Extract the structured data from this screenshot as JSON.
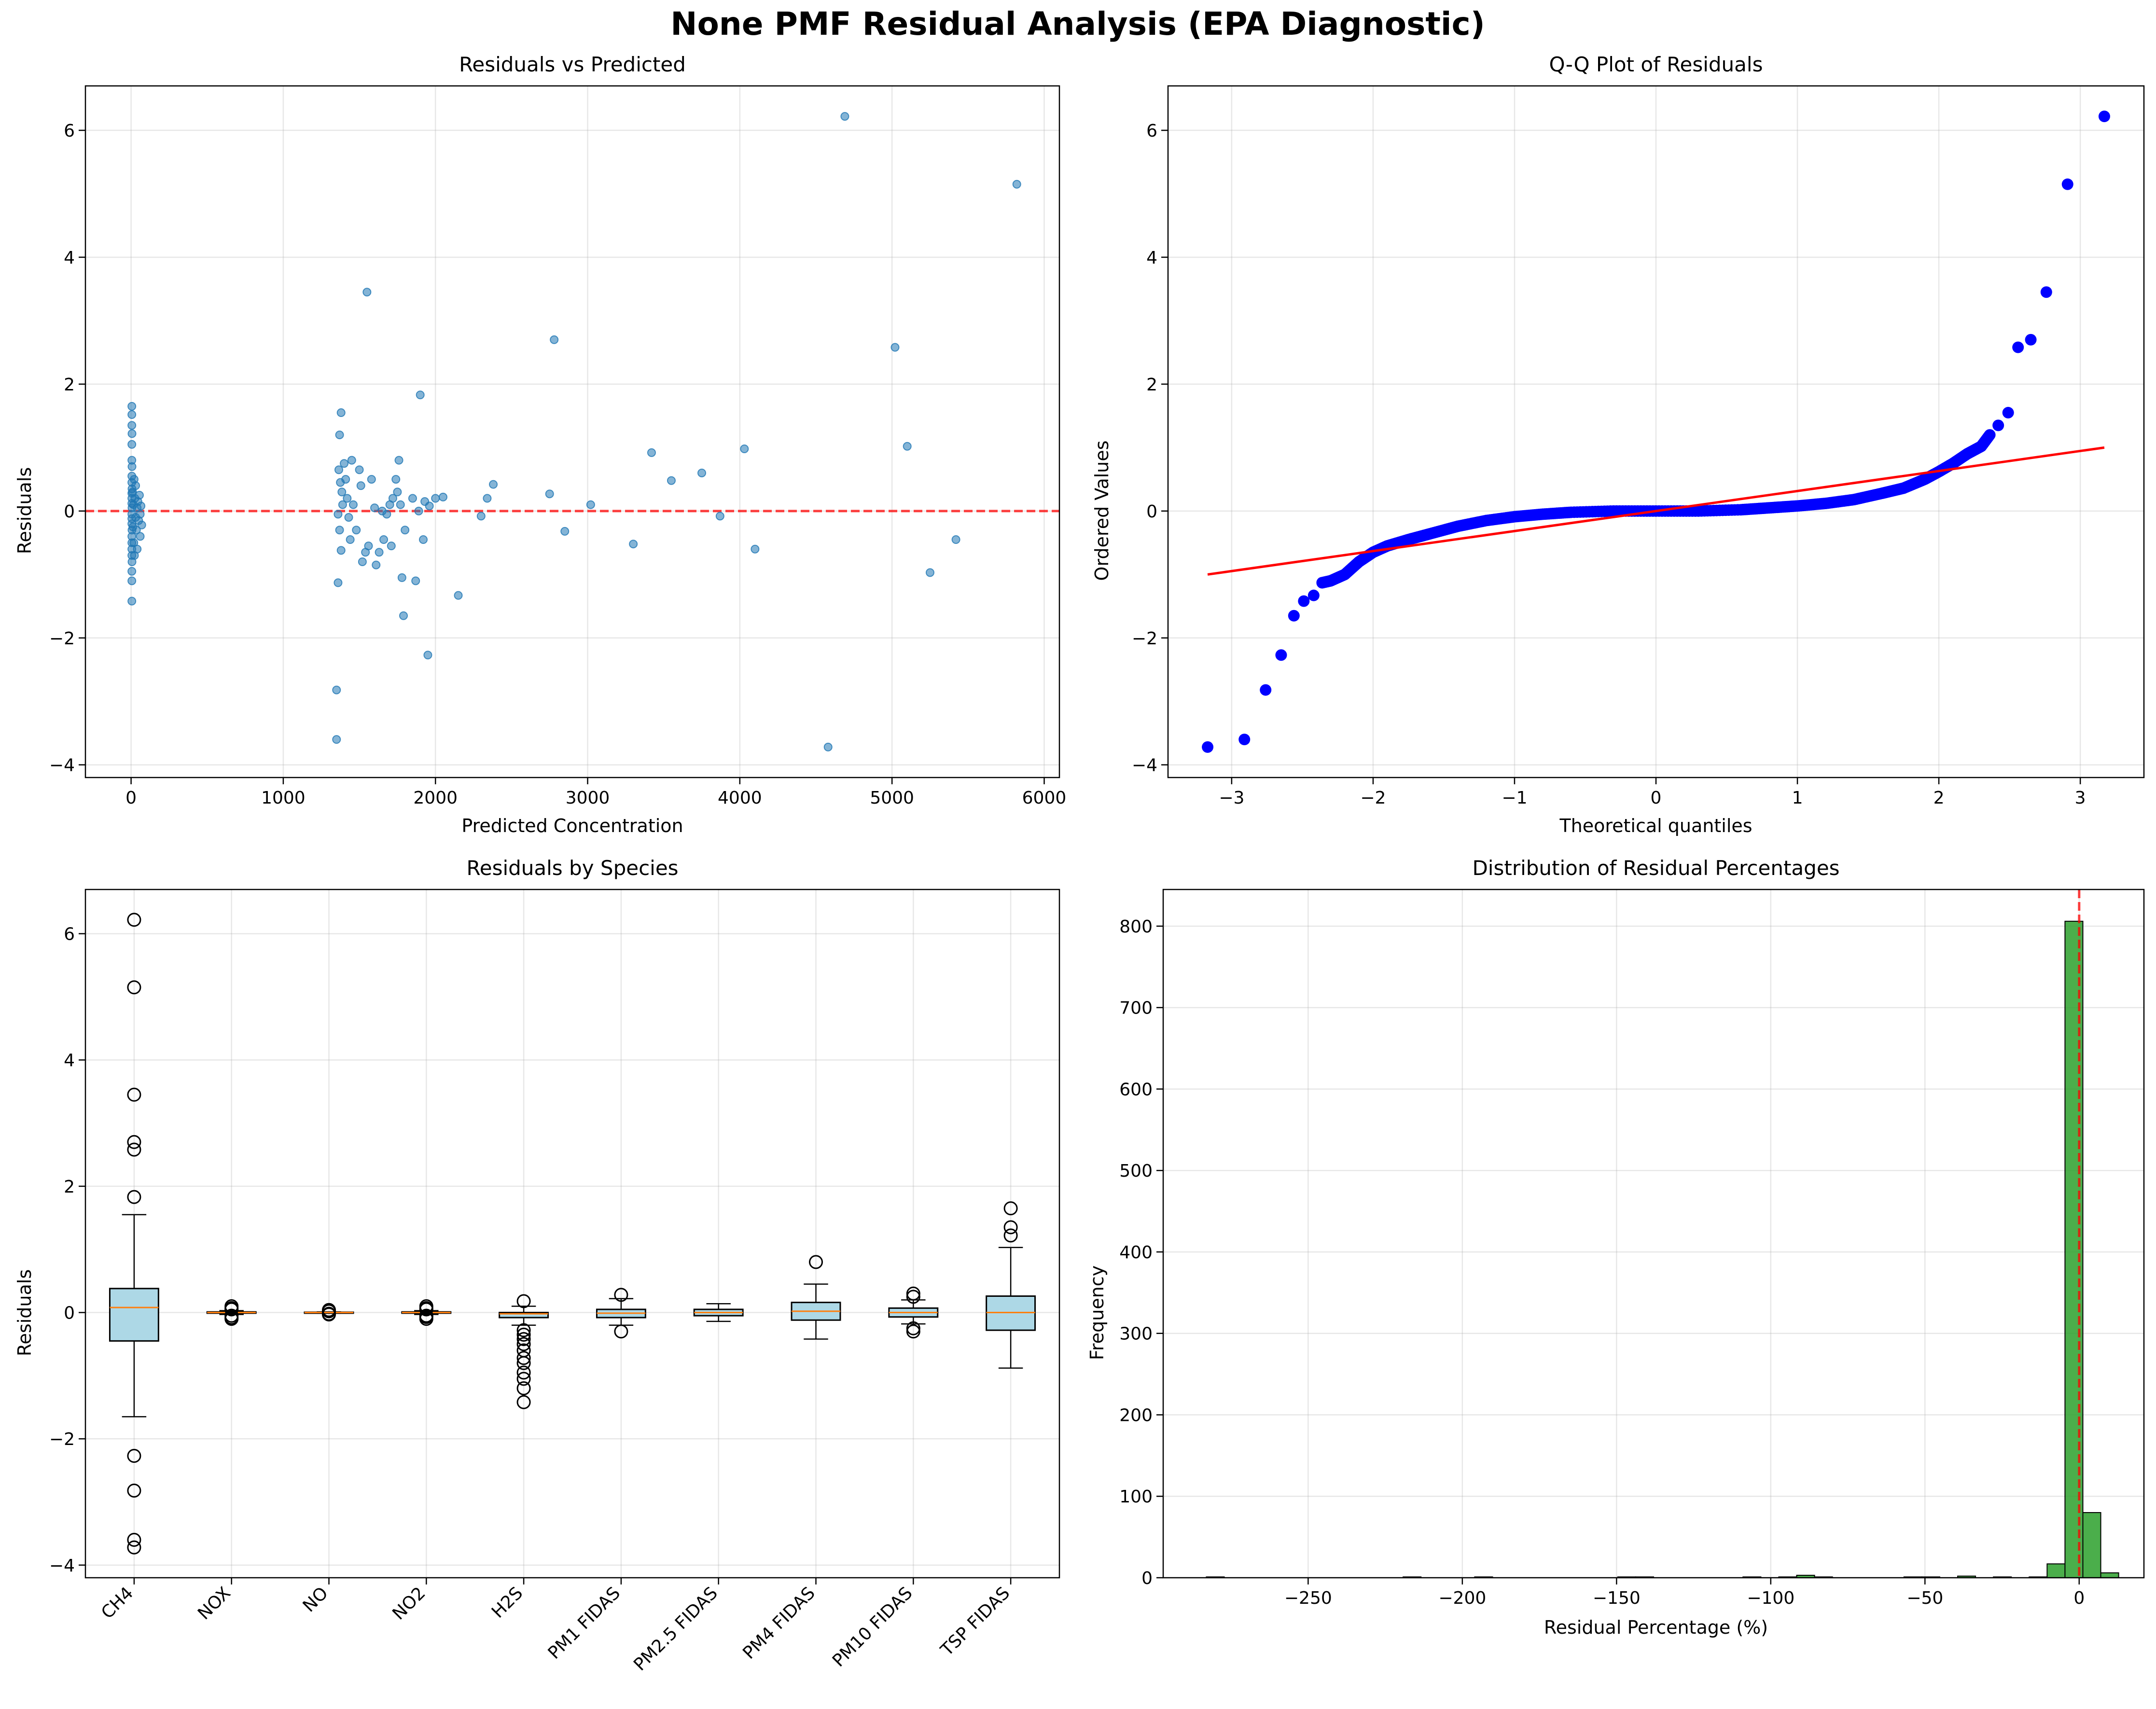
{
  "figure": {
    "title": "None PMF Residual Analysis (EPA Diagnostic)"
  },
  "chart_data": [
    {
      "type": "scatter",
      "title": "Residuals vs Predicted",
      "xlabel": "Predicted Concentration",
      "ylabel": "Residuals",
      "xlim": [
        -300,
        6100
      ],
      "ylim": [
        -4.2,
        6.7
      ],
      "xticks": [
        0,
        1000,
        2000,
        3000,
        4000,
        5000,
        6000
      ],
      "yticks": [
        -4,
        -2,
        0,
        2,
        4,
        6
      ],
      "grid": true,
      "reference_line": {
        "y": 0,
        "style": "dashed",
        "color": "#ff0000"
      },
      "point_color": "#1f77b4",
      "points": [
        [
          5,
          1.65
        ],
        [
          5,
          1.52
        ],
        [
          5,
          1.35
        ],
        [
          6,
          1.22
        ],
        [
          5,
          1.05
        ],
        [
          5,
          0.8
        ],
        [
          6,
          0.7
        ],
        [
          5,
          0.55
        ],
        [
          5,
          0.45
        ],
        [
          6,
          0.35
        ],
        [
          5,
          0.28
        ],
        [
          5,
          0.2
        ],
        [
          5,
          0.12
        ],
        [
          6,
          0.05
        ],
        [
          5,
          -0.05
        ],
        [
          5,
          -0.12
        ],
        [
          5,
          -0.2
        ],
        [
          6,
          -0.3
        ],
        [
          5,
          -0.4
        ],
        [
          5,
          -0.5
        ],
        [
          5,
          -0.6
        ],
        [
          5,
          -0.7
        ],
        [
          6,
          -0.8
        ],
        [
          5,
          -0.95
        ],
        [
          5,
          -1.1
        ],
        [
          5,
          -1.42
        ],
        [
          10,
          0.3
        ],
        [
          12,
          -0.25
        ],
        [
          15,
          0.1
        ],
        [
          18,
          -0.5
        ],
        [
          20,
          0.5
        ],
        [
          22,
          -0.7
        ],
        [
          25,
          0.2
        ],
        [
          30,
          -0.1
        ],
        [
          30,
          0.4
        ],
        [
          35,
          -0.3
        ],
        [
          40,
          0.05
        ],
        [
          40,
          -0.6
        ],
        [
          45,
          0.15
        ],
        [
          50,
          -0.15
        ],
        [
          55,
          0.25
        ],
        [
          60,
          -0.05
        ],
        [
          60,
          -0.4
        ],
        [
          65,
          0.08
        ],
        [
          70,
          -0.22
        ],
        [
          1350,
          -3.6
        ],
        [
          1350,
          -2.82
        ],
        [
          1360,
          -1.13
        ],
        [
          1370,
          1.2
        ],
        [
          1380,
          1.55
        ],
        [
          1365,
          0.65
        ],
        [
          1375,
          0.45
        ],
        [
          1385,
          0.3
        ],
        [
          1390,
          0.1
        ],
        [
          1360,
          -0.05
        ],
        [
          1370,
          -0.3
        ],
        [
          1380,
          -0.62
        ],
        [
          1400,
          0.75
        ],
        [
          1410,
          0.5
        ],
        [
          1420,
          0.2
        ],
        [
          1430,
          -0.1
        ],
        [
          1440,
          -0.45
        ],
        [
          1450,
          0.8
        ],
        [
          1460,
          0.1
        ],
        [
          1480,
          -0.3
        ],
        [
          1500,
          0.65
        ],
        [
          1510,
          0.4
        ],
        [
          1520,
          -0.8
        ],
        [
          1540,
          -0.65
        ],
        [
          1550,
          3.45
        ],
        [
          1560,
          -0.55
        ],
        [
          1580,
          0.5
        ],
        [
          1600,
          0.05
        ],
        [
          1610,
          -0.85
        ],
        [
          1630,
          -0.65
        ],
        [
          1650,
          0
        ],
        [
          1660,
          -0.45
        ],
        [
          1680,
          -0.05
        ],
        [
          1700,
          0.1
        ],
        [
          1710,
          -0.55
        ],
        [
          1720,
          0.2
        ],
        [
          1740,
          0.5
        ],
        [
          1750,
          0.3
        ],
        [
          1760,
          0.8
        ],
        [
          1770,
          0.1
        ],
        [
          1780,
          -1.05
        ],
        [
          1790,
          -1.65
        ],
        [
          1800,
          -0.3
        ],
        [
          1850,
          0.2
        ],
        [
          1870,
          -1.1
        ],
        [
          1890,
          0
        ],
        [
          1900,
          1.83
        ],
        [
          1920,
          -0.45
        ],
        [
          1930,
          0.15
        ],
        [
          1950,
          -2.27
        ],
        [
          1960,
          0.08
        ],
        [
          2000,
          0.2
        ],
        [
          2050,
          0.22
        ],
        [
          2150,
          -1.33
        ],
        [
          2300,
          -0.08
        ],
        [
          2340,
          0.2
        ],
        [
          2380,
          0.42
        ],
        [
          2750,
          0.27
        ],
        [
          2780,
          2.7
        ],
        [
          2850,
          -0.32
        ],
        [
          3020,
          0.1
        ],
        [
          3300,
          -0.52
        ],
        [
          3420,
          0.92
        ],
        [
          3550,
          0.48
        ],
        [
          3750,
          0.6
        ],
        [
          3870,
          -0.08
        ],
        [
          4030,
          0.98
        ],
        [
          4100,
          -0.6
        ],
        [
          4580,
          -3.72
        ],
        [
          4690,
          6.22
        ],
        [
          5020,
          2.58
        ],
        [
          5100,
          1.02
        ],
        [
          5250,
          -0.97
        ],
        [
          5420,
          -0.45
        ],
        [
          5820,
          5.15
        ]
      ]
    },
    {
      "type": "scatter",
      "title": "Q-Q Plot of Residuals",
      "xlabel": "Theoretical quantiles",
      "ylabel": "Ordered Values",
      "xlim": [
        -3.45,
        3.45
      ],
      "ylim": [
        -4.2,
        6.7
      ],
      "xticks": [
        -3,
        -2,
        -1,
        0,
        1,
        2,
        3
      ],
      "yticks": [
        -4,
        -2,
        0,
        2,
        4,
        6
      ],
      "grid": true,
      "point_color": "#0000ff",
      "fit_line": {
        "x": [
          -3.17,
          3.17
        ],
        "y": [
          -1.0,
          1.0
        ],
        "color": "#ff0000"
      },
      "outlier_points": [
        [
          -3.17,
          -3.72
        ],
        [
          -2.91,
          -3.6
        ],
        [
          -2.76,
          -2.82
        ],
        [
          -2.65,
          -2.27
        ],
        [
          -2.56,
          -1.65
        ],
        [
          -2.49,
          -1.42
        ],
        [
          -2.42,
          -1.33
        ],
        [
          -2.36,
          -1.13
        ],
        [
          2.36,
          1.2
        ],
        [
          2.42,
          1.35
        ],
        [
          2.49,
          1.55
        ],
        [
          2.56,
          2.58
        ],
        [
          2.65,
          2.7
        ],
        [
          2.76,
          3.45
        ],
        [
          2.91,
          5.15
        ],
        [
          3.17,
          6.22
        ]
      ],
      "curve_knots": [
        [
          -2.36,
          -1.13
        ],
        [
          -2.3,
          -1.1
        ],
        [
          -2.2,
          -1.0
        ],
        [
          -2.1,
          -0.8
        ],
        [
          -2.0,
          -0.65
        ],
        [
          -1.9,
          -0.55
        ],
        [
          -1.75,
          -0.45
        ],
        [
          -1.6,
          -0.36
        ],
        [
          -1.4,
          -0.24
        ],
        [
          -1.2,
          -0.15
        ],
        [
          -1.0,
          -0.09
        ],
        [
          -0.8,
          -0.05
        ],
        [
          -0.6,
          -0.02
        ],
        [
          -0.3,
          0
        ],
        [
          0,
          0
        ],
        [
          0.3,
          0
        ],
        [
          0.6,
          0.02
        ],
        [
          0.8,
          0.05
        ],
        [
          1.0,
          0.08
        ],
        [
          1.2,
          0.12
        ],
        [
          1.4,
          0.18
        ],
        [
          1.6,
          0.28
        ],
        [
          1.75,
          0.36
        ],
        [
          1.9,
          0.5
        ],
        [
          2.0,
          0.62
        ],
        [
          2.1,
          0.75
        ],
        [
          2.2,
          0.9
        ],
        [
          2.3,
          1.02
        ],
        [
          2.36,
          1.2
        ]
      ]
    },
    {
      "type": "box",
      "title": "Residuals by Species",
      "xlabel": "",
      "ylabel": "Residuals",
      "ylim": [
        -4.2,
        6.7
      ],
      "yticks": [
        -4,
        -2,
        0,
        2,
        4,
        6
      ],
      "grid": true,
      "box_color": "#add8e6",
      "median_color": "#ff7f0e",
      "categories": [
        "CH4",
        "NOX",
        "NO",
        "NO2",
        "H2S",
        "PM1 FIDAS",
        "PM2.5 FIDAS",
        "PM4 FIDAS",
        "PM10 FIDAS",
        "TSP FIDAS"
      ],
      "boxes": [
        {
          "q1": -0.45,
          "median": 0.08,
          "q3": 0.38,
          "whisker_low": -1.65,
          "whisker_high": 1.55,
          "outliers": [
            6.22,
            5.15,
            3.45,
            2.7,
            2.58,
            1.83,
            -2.27,
            -2.82,
            -3.6,
            -3.72
          ]
        },
        {
          "q1": -0.01,
          "median": 0.0,
          "q3": 0.01,
          "whisker_low": -0.03,
          "whisker_high": 0.03,
          "outliers": [
            0.1,
            0.07,
            0.05,
            -0.05,
            -0.08,
            -0.1
          ]
        },
        {
          "q1": -0.005,
          "median": 0.0,
          "q3": 0.005,
          "whisker_low": -0.01,
          "whisker_high": 0.01,
          "outliers": [
            0.04,
            0.02,
            -0.02,
            -0.03
          ]
        },
        {
          "q1": -0.01,
          "median": 0.0,
          "q3": 0.01,
          "whisker_low": -0.03,
          "whisker_high": 0.03,
          "outliers": [
            0.1,
            0.07,
            0.05,
            -0.05,
            -0.07,
            -0.1
          ]
        },
        {
          "q1": -0.08,
          "median": -0.02,
          "q3": 0.0,
          "whisker_low": -0.2,
          "whisker_high": 0.1,
          "outliers": [
            0.18,
            -0.28,
            -0.35,
            -0.42,
            -0.5,
            -0.6,
            -0.72,
            -0.8,
            -0.95,
            -1.05,
            -1.2,
            -1.42
          ]
        },
        {
          "q1": -0.08,
          "median": -0.01,
          "q3": 0.05,
          "whisker_low": -0.2,
          "whisker_high": 0.22,
          "outliers": [
            0.28,
            -0.3
          ]
        },
        {
          "q1": -0.05,
          "median": 0.0,
          "q3": 0.05,
          "whisker_low": -0.14,
          "whisker_high": 0.14,
          "outliers": []
        },
        {
          "q1": -0.12,
          "median": 0.02,
          "q3": 0.16,
          "whisker_low": -0.42,
          "whisker_high": 0.45,
          "outliers": [
            0.8
          ]
        },
        {
          "q1": -0.07,
          "median": 0.0,
          "q3": 0.07,
          "whisker_low": -0.18,
          "whisker_high": 0.2,
          "outliers": [
            0.3,
            0.25,
            -0.25,
            -0.3
          ]
        },
        {
          "q1": -0.28,
          "median": 0.0,
          "q3": 0.26,
          "whisker_low": -0.88,
          "whisker_high": 1.03,
          "outliers": [
            1.65,
            1.35,
            1.22
          ]
        }
      ]
    },
    {
      "type": "histogram",
      "title": "Distribution of Residual Percentages",
      "xlabel": "Residual Percentage (%)",
      "ylabel": "Frequency",
      "xlim": [
        -297,
        21
      ],
      "ylim": [
        0,
        845
      ],
      "xticks": [
        -250,
        -200,
        -150,
        -100,
        -50,
        0
      ],
      "yticks": [
        0,
        100,
        200,
        300,
        400,
        500,
        600,
        700,
        800
      ],
      "grid": true,
      "bar_color": "#2ca02c",
      "reference_line": {
        "x": 0,
        "style": "dashed",
        "color": "#ff0000"
      },
      "bin_edges": [
        -283,
        -277.2,
        -271.4,
        -265.6,
        -259.8,
        -254,
        -248.2,
        -242.4,
        -236.6,
        -230.8,
        -225,
        -219.2,
        -213.4,
        -207.6,
        -201.8,
        -196,
        -190.2,
        -184.4,
        -178.6,
        -172.8,
        -167,
        -161.2,
        -155.4,
        -149.6,
        -143.8,
        -138,
        -132.2,
        -126.4,
        -120.6,
        -114.8,
        -109,
        -103.2,
        -97.4,
        -91.6,
        -85.8,
        -80,
        -74.2,
        -68.4,
        -62.6,
        -56.8,
        -51,
        -45.2,
        -39.4,
        -33.6,
        -27.8,
        -22,
        -16.2,
        -10.4,
        -4.6,
        1.2,
        7,
        12.8
      ],
      "counts": [
        1,
        0,
        0,
        0,
        0,
        0,
        0,
        0,
        0,
        0,
        0,
        1,
        0,
        0,
        0,
        1,
        0,
        0,
        0,
        0,
        0,
        0,
        0,
        1,
        1,
        0,
        0,
        0,
        0,
        0,
        1,
        0,
        1,
        3,
        1,
        0,
        0,
        0,
        0,
        1,
        1,
        0,
        2,
        0,
        1,
        0,
        1,
        17,
        806,
        80,
        6
      ]
    }
  ]
}
